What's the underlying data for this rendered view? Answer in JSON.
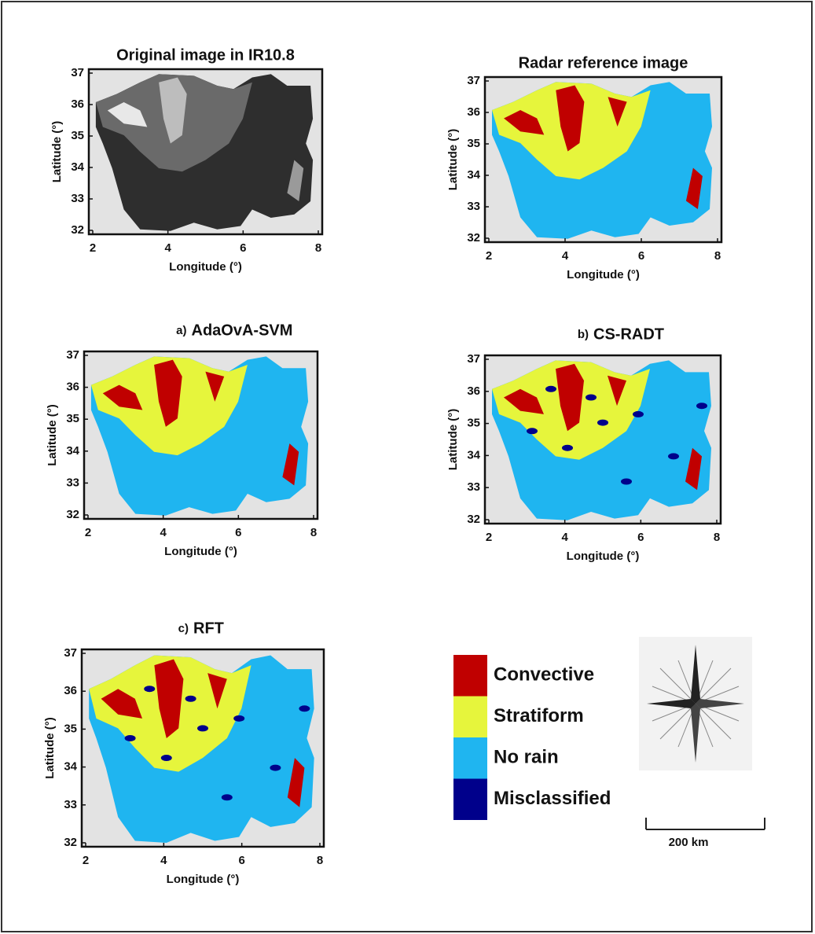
{
  "panels": [
    {
      "title": "Original image in IR10.8",
      "xlabel": "Longitude (°)",
      "ylabel": "Latitude (°)",
      "xlim": [
        2,
        8
      ],
      "ylim": [
        32,
        37
      ],
      "xticks": [
        2,
        4,
        6,
        8
      ],
      "yticks": [
        32,
        33,
        34,
        35,
        36,
        37
      ]
    },
    {
      "title": "Radar reference image",
      "xlabel": "Longitude (°)",
      "ylabel": "Latitude (°)",
      "xlim": [
        2,
        8
      ],
      "ylim": [
        32,
        37
      ],
      "xticks": [
        2,
        4,
        6,
        8
      ],
      "yticks": [
        32,
        33,
        34,
        35,
        36,
        37
      ]
    },
    {
      "label": "a)",
      "title": "AdaOvA-SVM",
      "xlabel": "Longitude (°)",
      "ylabel": "Latitude (°)",
      "xlim": [
        2,
        8
      ],
      "ylim": [
        32,
        37
      ],
      "xticks": [
        2,
        4,
        6,
        8
      ],
      "yticks": [
        32,
        33,
        34,
        35,
        36,
        37
      ]
    },
    {
      "label": "b)",
      "title": "CS-RADT",
      "xlabel": "Longitude (°)",
      "ylabel": "Latitude (°)",
      "xlim": [
        2,
        8
      ],
      "ylim": [
        32,
        37
      ],
      "xticks": [
        2,
        4,
        6,
        8
      ],
      "yticks": [
        32,
        33,
        34,
        35,
        36,
        37
      ]
    },
    {
      "label": "c)",
      "title": "RFT",
      "xlabel": "Longitude (°)",
      "ylabel": "Latitude (°)",
      "xlim": [
        2,
        8
      ],
      "ylim": [
        32,
        37
      ],
      "xticks": [
        2,
        4,
        6,
        8
      ],
      "yticks": [
        32,
        33,
        34,
        35,
        36,
        37
      ]
    }
  ],
  "legend": [
    {
      "label": "Convective",
      "color": "#c00000"
    },
    {
      "label": "Stratiform",
      "color": "#e6f53c"
    },
    {
      "label": "No rain",
      "color": "#1fb5f0"
    },
    {
      "label": "Misclassified",
      "color": "#00008b"
    }
  ],
  "scale_bar": "200 km"
}
